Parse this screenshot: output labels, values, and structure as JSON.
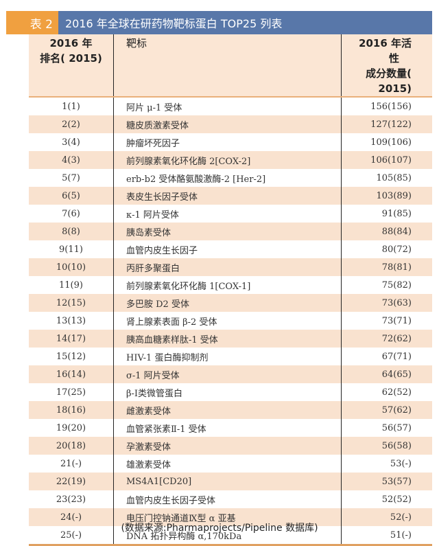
{
  "title": {
    "label": "表 2",
    "text": "2016 年全球在研药物靶标蛋白 TOP25 列表"
  },
  "headers": {
    "rank_line1": "2016 年",
    "rank_line2": "排名( 2015)",
    "target": "靶标",
    "count_line1": "2016 年活性",
    "count_line2": "成分数量( 2015)"
  },
  "rows": [
    {
      "rank": "1(1)",
      "target": "阿片 μ-1 受体",
      "count": "156(156)"
    },
    {
      "rank": "2(2)",
      "target": "糖皮质激素受体",
      "count": "127(122)"
    },
    {
      "rank": "3(4)",
      "target": "肿瘤坏死因子",
      "count": "109(106)"
    },
    {
      "rank": "4(3)",
      "target": "前列腺素氧化环化酶 2[COX-2]",
      "count": "106(107)"
    },
    {
      "rank": "5(7)",
      "target": "erb-b2 受体酪氨酸激酶-2 [Her-2]",
      "count": "105(85)"
    },
    {
      "rank": "6(5)",
      "target": "表皮生长因子受体",
      "count": "103(89)"
    },
    {
      "rank": "7(6)",
      "target": "κ-1 阿片受体",
      "count": "91(85)"
    },
    {
      "rank": "8(8)",
      "target": "胰岛素受体",
      "count": "88(84)"
    },
    {
      "rank": "9(11)",
      "target": "血管内皮生长因子",
      "count": "80(72)"
    },
    {
      "rank": "10(10)",
      "target": "丙肝多聚蛋白",
      "count": "78(81)"
    },
    {
      "rank": "11(9)",
      "target": "前列腺素氧化环化酶 1[COX-1]",
      "count": "75(82)"
    },
    {
      "rank": "12(15)",
      "target": "多巴胺 D2 受体",
      "count": "73(63)"
    },
    {
      "rank": "13(13)",
      "target": "肾上腺素表面 β-2 受体",
      "count": "73(71)"
    },
    {
      "rank": "14(17)",
      "target": "胰高血糖素样肽-1 受体",
      "count": "72(62)"
    },
    {
      "rank": "15(12)",
      "target": "HIV-1 蛋白酶抑制剂",
      "count": "67(71)"
    },
    {
      "rank": "16(14)",
      "target": "σ-1 阿片受体",
      "count": "64(65)"
    },
    {
      "rank": "17(25)",
      "target": "β-Ⅰ类微管蛋白",
      "count": "62(52)"
    },
    {
      "rank": "18(16)",
      "target": "雌激素受体",
      "count": "57(62)"
    },
    {
      "rank": "19(20)",
      "target": "血管紧张素Ⅱ-1 受体",
      "count": "56(57)"
    },
    {
      "rank": "20(18)",
      "target": "孕激素受体",
      "count": "56(58)"
    },
    {
      "rank": "21(-)",
      "target": "雄激素受体",
      "count": "53(-)"
    },
    {
      "rank": "22(19)",
      "target": "MS4A1[CD20]",
      "count": "53(57)"
    },
    {
      "rank": "23(23)",
      "target": "血管内皮生长因子受体",
      "count": "52(52)"
    },
    {
      "rank": "24(-)",
      "target": "电压门控钠通道Ⅸ型 α 亚基",
      "count": "52(-)"
    },
    {
      "rank": "25(-)",
      "target": "DNA 拓扑异构酶 α,170kDa",
      "count": "51(-)"
    }
  ],
  "source": "(数据来源:Pharmaprojects/Pipeline 数据库)",
  "colors": {
    "orange": "#f0a040",
    "blue": "#5877a9",
    "stripe": "#f9e2cf"
  }
}
